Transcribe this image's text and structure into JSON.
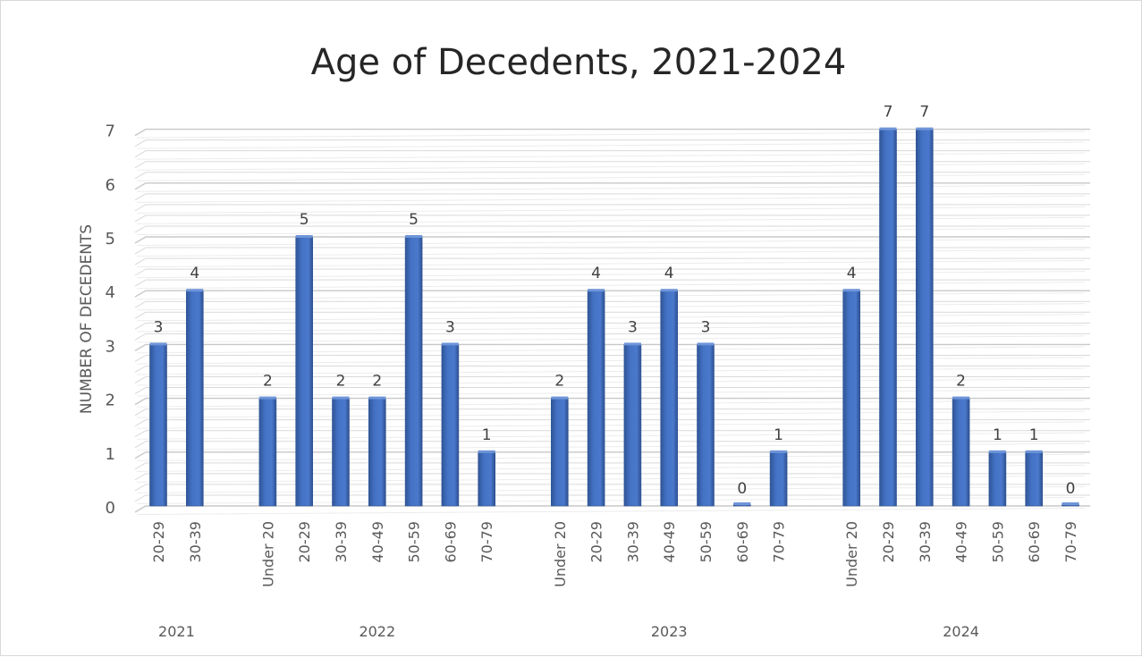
{
  "chart_data": {
    "type": "bar",
    "title": "Age of Decedents, 2021-2024",
    "ylabel": "NUMBER OF DECEDENTS",
    "xlabel": "",
    "ylim": [
      0,
      7
    ],
    "yticks": [
      "0",
      "1",
      "2",
      "3",
      "4",
      "5",
      "6",
      "7"
    ],
    "grid": true,
    "legend": "none",
    "bar_color": "#4472c4",
    "groups": [
      {
        "name": "2021",
        "categories": [
          "20-29",
          "30-39"
        ],
        "values": [
          3,
          4
        ]
      },
      {
        "name": "2022",
        "categories": [
          "Under 20",
          "20-29",
          "30-39",
          "40-49",
          "50-59",
          "60-69",
          "70-79"
        ],
        "values": [
          2,
          5,
          2,
          2,
          5,
          3,
          1
        ]
      },
      {
        "name": "2023",
        "categories": [
          "Under 20",
          "20-29",
          "30-39",
          "40-49",
          "50-59",
          "60-69",
          "70-79"
        ],
        "values": [
          2,
          4,
          3,
          4,
          3,
          0,
          1
        ]
      },
      {
        "name": "2024",
        "categories": [
          "Under 20",
          "20-29",
          "30-39",
          "40-49",
          "50-59",
          "60-69",
          "70-79"
        ],
        "values": [
          4,
          7,
          7,
          2,
          1,
          1,
          0
        ]
      }
    ]
  }
}
